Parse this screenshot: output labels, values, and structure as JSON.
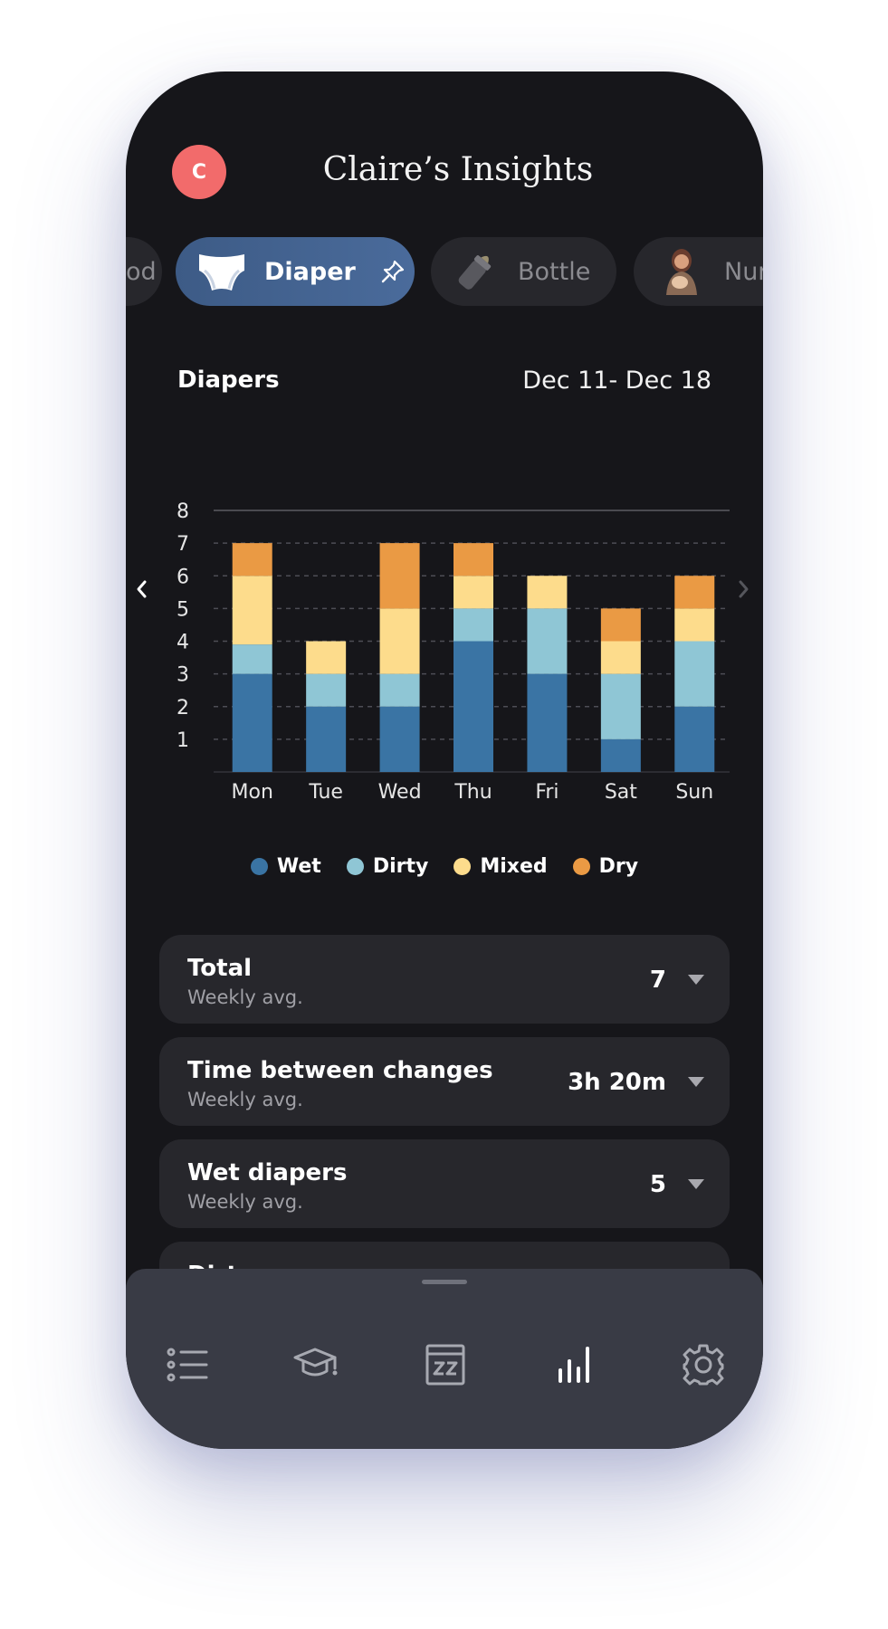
{
  "header": {
    "avatar_initial": "C",
    "title": "Claire’s Insights"
  },
  "tabs": [
    {
      "label": "od",
      "icon": "partial-icon"
    },
    {
      "label": "Diaper",
      "icon": "diaper-icon",
      "pinned": true,
      "active": true
    },
    {
      "label": "Bottle",
      "icon": "bottle-icon"
    },
    {
      "label": "Nur",
      "icon": "nursing-icon"
    }
  ],
  "chart_header": {
    "title": "Diapers",
    "range": "Dec 11- Dec 18"
  },
  "chart_data": {
    "type": "bar",
    "stacked": true,
    "categories": [
      "Mon",
      "Tue",
      "Wed",
      "Thu",
      "Fri",
      "Sat",
      "Sun"
    ],
    "series": [
      {
        "name": "Wet",
        "color": "#3a74a4",
        "values": [
          3,
          2,
          2,
          4,
          3,
          1,
          2
        ]
      },
      {
        "name": "Dirty",
        "color": "#8fc6d5",
        "values": [
          0.9,
          1,
          1,
          1,
          2,
          2,
          2
        ]
      },
      {
        "name": "Mixed",
        "color": "#fddc8c",
        "values": [
          2.1,
          1,
          2,
          1,
          1,
          1,
          1
        ]
      },
      {
        "name": "Dry",
        "color": "#ea9a44",
        "values": [
          1,
          0,
          2,
          1,
          0,
          1,
          1
        ]
      }
    ],
    "yticks": [
      1,
      2,
      3,
      4,
      5,
      6,
      7,
      8
    ],
    "ylim": [
      0,
      8
    ],
    "grid": true,
    "legend": "bottom"
  },
  "cards": [
    {
      "title": "Total",
      "subtitle": "Weekly avg.",
      "value": "7"
    },
    {
      "title": "Time between changes",
      "subtitle": "Weekly avg.",
      "value": "3h 20m"
    },
    {
      "title": "Wet diapers",
      "subtitle": "Weekly avg.",
      "value": "5"
    },
    {
      "title": "Dirty",
      "subtitle": "",
      "value": ""
    }
  ],
  "nav": {
    "items": [
      "list-icon",
      "learn-icon",
      "sleep-icon",
      "insights-icon",
      "settings-icon"
    ],
    "active": "insights-icon"
  },
  "colors": {
    "background": "#16161a",
    "card": "#27272c",
    "accent_tab": "#4a6b9b",
    "avatar": "#f26b6b",
    "nav_bar": "#393b45"
  }
}
